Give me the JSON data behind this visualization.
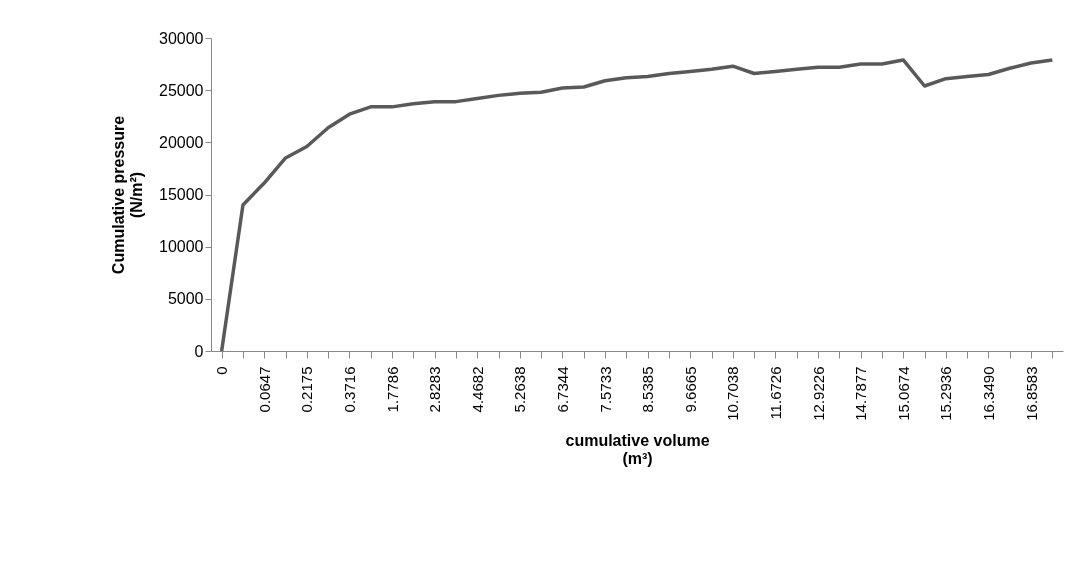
{
  "chart_data": {
    "type": "line",
    "xlabel": "cumulative volume\n(m³)",
    "ylabel": "Cumulative pressure\n(N/m²)",
    "categories": [
      "0",
      null,
      "0.0647",
      null,
      "0.2175",
      null,
      "0.3716",
      null,
      "1.7786",
      null,
      "2.8283",
      null,
      "4.4682",
      null,
      "5.2638",
      null,
      "6.7344",
      null,
      "7.5733",
      null,
      "8.5385",
      null,
      "9.6665",
      null,
      "10.7038",
      null,
      "11.6726",
      null,
      "12.9226",
      null,
      "14.7877",
      null,
      "15.0674",
      null,
      "15.2936",
      null,
      "16.3490",
      null,
      "16.8583",
      null
    ],
    "series": [
      {
        "color": "#595959",
        "values": [
          0,
          14000,
          16100,
          18500,
          19600,
          21400,
          22700,
          23400,
          23400,
          23700,
          23900,
          23900,
          24200,
          24500,
          24700,
          24800,
          25200,
          25300,
          25900,
          26200,
          26300,
          26600,
          26800,
          27000,
          27300,
          26600,
          26800,
          27000,
          27200,
          27200,
          27500,
          27500,
          27900,
          25400,
          26100,
          26300,
          26500,
          27100,
          27600,
          27900
        ]
      }
    ],
    "ylim": [
      0,
      30000
    ],
    "yticks": [
      0,
      5000,
      10000,
      15000,
      20000,
      25000,
      30000
    ],
    "grid": false,
    "legend": false,
    "marker": "none",
    "line_style": "solid"
  }
}
